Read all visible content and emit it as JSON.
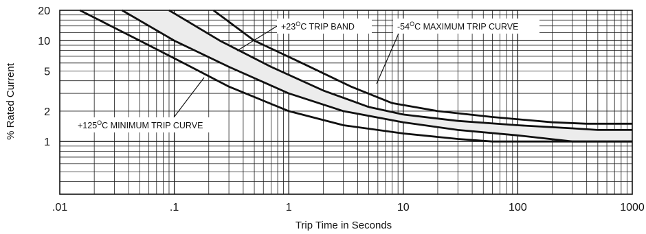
{
  "chart_data": {
    "type": "line",
    "xlabel": "Trip Time in Seconds",
    "ylabel": "% Rated Current",
    "x_scale": "log",
    "y_scale": "log",
    "xlim": [
      0.01,
      1000
    ],
    "ylim": [
      0.3,
      20
    ],
    "x_ticks": [
      {
        "value": 0.01,
        "label": ".01"
      },
      {
        "value": 0.1,
        "label": ".1"
      },
      {
        "value": 1,
        "label": "1"
      },
      {
        "value": 10,
        "label": "10"
      },
      {
        "value": 100,
        "label": "100"
      },
      {
        "value": 1000,
        "label": "1000"
      }
    ],
    "y_ticks": [
      {
        "value": 20,
        "label": "20"
      },
      {
        "value": 10,
        "label": "10"
      },
      {
        "value": 5,
        "label": "5"
      },
      {
        "value": 2,
        "label": "2"
      },
      {
        "value": 1,
        "label": "1"
      }
    ],
    "grid": true,
    "series": [
      {
        "name": "+125°C MINIMUM TRIP CURVE",
        "points": [
          [
            0.015,
            20
          ],
          [
            0.05,
            10
          ],
          [
            0.12,
            6
          ],
          [
            0.3,
            3.5
          ],
          [
            1,
            2
          ],
          [
            3,
            1.45
          ],
          [
            10,
            1.2
          ],
          [
            30,
            1.06
          ],
          [
            60,
            1.0
          ],
          [
            100,
            1.0
          ],
          [
            1000,
            1.0
          ]
        ]
      },
      {
        "name": "+23°C TRIP BAND lower",
        "points": [
          [
            0.035,
            20
          ],
          [
            0.1,
            10
          ],
          [
            0.3,
            5.5
          ],
          [
            1,
            3
          ],
          [
            3,
            2
          ],
          [
            10,
            1.55
          ],
          [
            30,
            1.3
          ],
          [
            100,
            1.15
          ],
          [
            300,
            1.0
          ],
          [
            1000,
            1.0
          ]
        ]
      },
      {
        "name": "+23°C TRIP BAND upper",
        "points": [
          [
            0.09,
            20
          ],
          [
            0.25,
            10
          ],
          [
            0.7,
            5.5
          ],
          [
            2,
            3.2
          ],
          [
            5,
            2.2
          ],
          [
            10,
            1.85
          ],
          [
            30,
            1.6
          ],
          [
            100,
            1.45
          ],
          [
            300,
            1.35
          ],
          [
            500,
            1.3
          ],
          [
            1000,
            1.3
          ]
        ]
      },
      {
        "name": "-54°C MAXIMUM TRIP CURVE",
        "points": [
          [
            0.22,
            20
          ],
          [
            0.5,
            10
          ],
          [
            1.3,
            6
          ],
          [
            3.5,
            3.5
          ],
          [
            8,
            2.4
          ],
          [
            20,
            2.0
          ],
          [
            60,
            1.75
          ],
          [
            200,
            1.55
          ],
          [
            400,
            1.5
          ],
          [
            1000,
            1.5
          ]
        ]
      }
    ],
    "annotations": [
      {
        "pre": "+23",
        "sup": "O",
        "post": "C TRIP BAND"
      },
      {
        "pre": "-54",
        "sup": "O",
        "post": "C MAXIMUM TRIP CURVE"
      },
      {
        "pre": "+125",
        "sup": "O",
        "post": "C MINIMUM TRIP CURVE"
      }
    ],
    "colors": {
      "curve": "#111111",
      "band_fill": "#ececec",
      "grid": "#1a1a1a"
    }
  }
}
